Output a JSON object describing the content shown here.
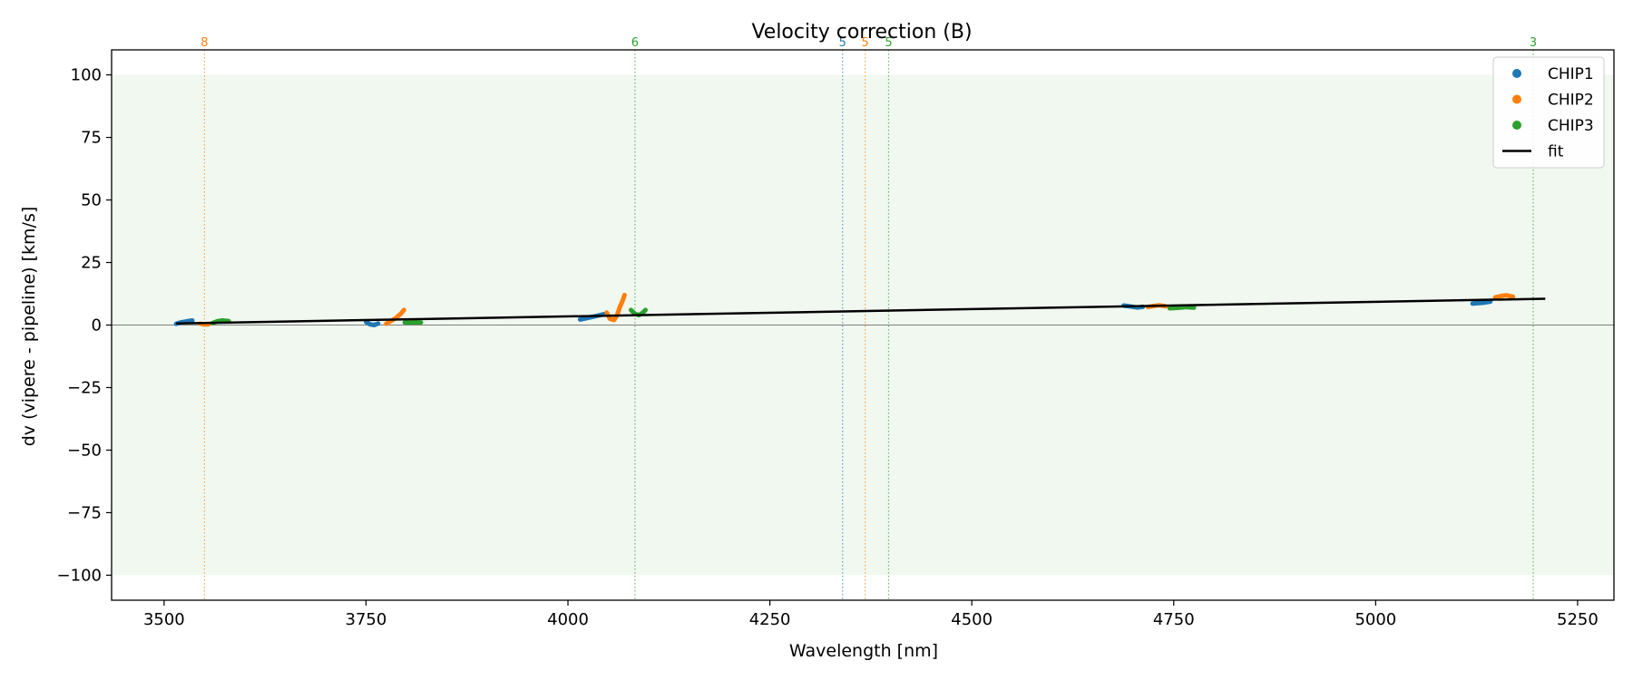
{
  "chart_data": {
    "type": "scatter",
    "title": "Velocity correction (B)",
    "xlabel": "Wavelength [nm]",
    "ylabel": "dv (vipere - pipeline) [km/s]",
    "xlim": [
      3435,
      5295
    ],
    "ylim": [
      -110,
      110
    ],
    "xticks": [
      3500,
      3750,
      4000,
      4250,
      4500,
      4750,
      5000,
      5250
    ],
    "yticks": [
      100,
      75,
      50,
      25,
      0,
      -25,
      -50,
      -75,
      -100
    ],
    "xtick_labels": [
      "3500",
      "3750",
      "4000",
      "4250",
      "4500",
      "4750",
      "5000",
      "5250"
    ],
    "ytick_labels": [
      "100",
      "75",
      "50",
      "25",
      "0",
      "−25",
      "−50",
      "−75",
      "−100"
    ],
    "shaded_band": [
      -100,
      100
    ],
    "shaded_color": "#2ca02c",
    "zero_line": true,
    "grid": false,
    "legend_position": "top-right",
    "legend": [
      {
        "label": "CHIP1",
        "color": "#1f77b4",
        "marker": "dot"
      },
      {
        "label": "CHIP2",
        "color": "#ff7f0e",
        "marker": "dot"
      },
      {
        "label": "CHIP3",
        "color": "#2ca02c",
        "marker": "dot"
      },
      {
        "label": "fit",
        "color": "#000000",
        "marker": "line"
      }
    ],
    "series": [
      {
        "name": "CHIP1",
        "color": "#1f77b4",
        "segments": [
          [
            [
              3515,
              0.5
            ],
            [
              3520,
              1.0
            ],
            [
              3525,
              1.3
            ],
            [
              3530,
              1.6
            ],
            [
              3535,
              1.8
            ]
          ],
          [
            [
              3750,
              1.2
            ],
            [
              3755,
              0.3
            ],
            [
              3760,
              0.0
            ],
            [
              3765,
              0.6
            ]
          ],
          [
            [
              4015,
              2.2
            ],
            [
              4025,
              2.9
            ],
            [
              4035,
              3.6
            ],
            [
              4045,
              4.4
            ]
          ],
          [
            [
              4688,
              7.8
            ],
            [
              4695,
              7.5
            ],
            [
              4705,
              7.0
            ],
            [
              4712,
              7.3
            ]
          ],
          [
            [
              5120,
              8.6
            ],
            [
              5128,
              8.8
            ],
            [
              5135,
              9.0
            ],
            [
              5142,
              9.4
            ]
          ]
        ]
      },
      {
        "name": "CHIP2",
        "color": "#ff7f0e",
        "segments": [
          [
            [
              3545,
              0.5
            ],
            [
              3550,
              0.2
            ],
            [
              3555,
              0.3
            ]
          ],
          [
            [
              3775,
              0.5
            ],
            [
              3780,
              1.5
            ],
            [
              3787,
              2.8
            ],
            [
              3793,
              4.5
            ],
            [
              3797,
              6.0
            ]
          ],
          [
            [
              4048,
              5.0
            ],
            [
              4052,
              2.5
            ],
            [
              4057,
              2.0
            ],
            [
              4061,
              4.0
            ],
            [
              4064,
              7.0
            ],
            [
              4068,
              10.0
            ],
            [
              4070,
              12.0
            ]
          ],
          [
            [
              4718,
              7.2
            ],
            [
              4725,
              7.6
            ],
            [
              4732,
              7.9
            ],
            [
              4740,
              7.5
            ]
          ],
          [
            [
              5148,
              11.0
            ],
            [
              5155,
              11.6
            ],
            [
              5162,
              11.9
            ],
            [
              5170,
              11.3
            ]
          ]
        ]
      },
      {
        "name": "CHIP3",
        "color": "#2ca02c",
        "segments": [
          [
            [
              3560,
              0.8
            ],
            [
              3566,
              1.5
            ],
            [
              3572,
              1.8
            ],
            [
              3580,
              1.6
            ]
          ],
          [
            [
              3798,
              1.0
            ],
            [
              3805,
              1.0
            ],
            [
              3812,
              1.1
            ],
            [
              3818,
              1.0
            ]
          ],
          [
            [
              4078,
              6.0
            ],
            [
              4083,
              4.5
            ],
            [
              4088,
              4.0
            ],
            [
              4093,
              5.0
            ],
            [
              4096,
              6.0
            ]
          ],
          [
            [
              4745,
              6.7
            ],
            [
              4755,
              6.9
            ],
            [
              4765,
              7.2
            ],
            [
              4775,
              7.0
            ]
          ]
        ]
      }
    ],
    "fit": {
      "name": "fit",
      "color": "#000000",
      "x": [
        3515,
        5210
      ],
      "y": [
        0.6,
        10.5
      ]
    },
    "vlines": [
      {
        "x": 3550,
        "label": "8",
        "color": "#ff7f0e"
      },
      {
        "x": 4083,
        "label": "6",
        "color": "#2ca02c"
      },
      {
        "x": 4340,
        "label": "5",
        "color": "#1f77b4"
      },
      {
        "x": 4368,
        "label": "5",
        "color": "#ff7f0e"
      },
      {
        "x": 4397,
        "label": "5",
        "color": "#2ca02c"
      },
      {
        "x": 5195,
        "label": "3",
        "color": "#2ca02c"
      }
    ]
  }
}
